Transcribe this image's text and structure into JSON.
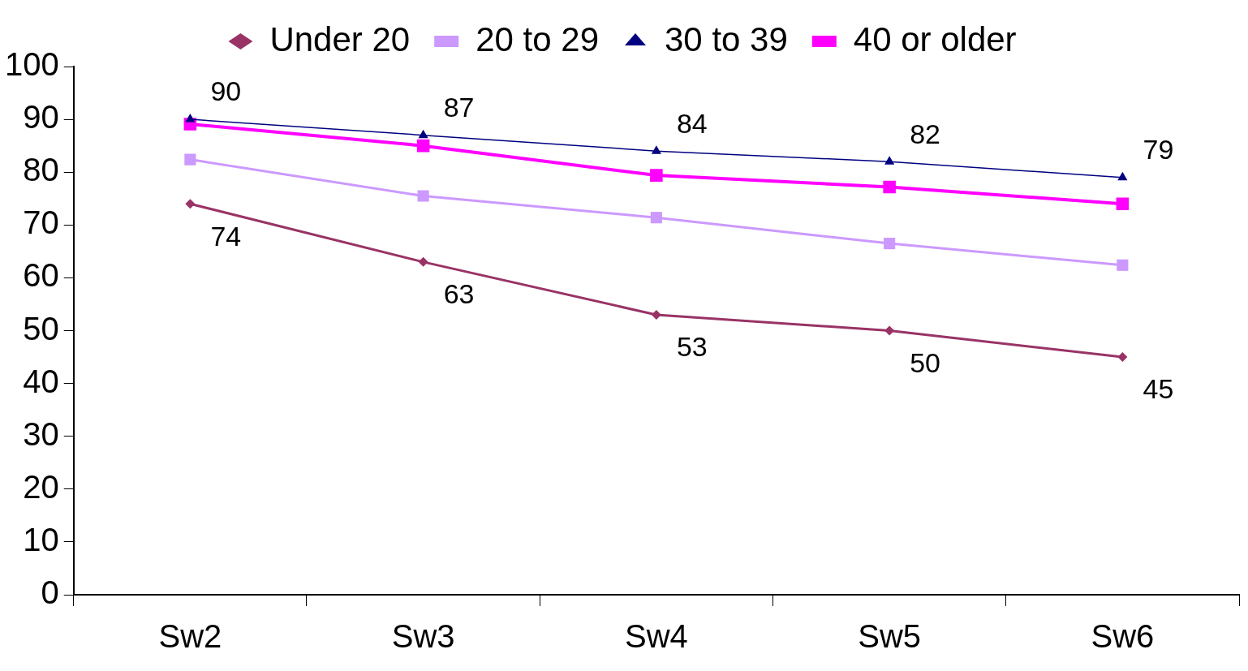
{
  "chart_data": {
    "type": "line",
    "categories": [
      "Sw2",
      "Sw3",
      "Sw4",
      "Sw5",
      "Sw6"
    ],
    "series": [
      {
        "name": "Under 20",
        "color": "#993366",
        "marker": "diamond",
        "values": [
          74,
          63,
          53,
          50,
          45
        ],
        "value_labels": [
          "74",
          "63",
          "53",
          "50",
          "45"
        ]
      },
      {
        "name": "20 to 29",
        "color": "#cc99ff",
        "marker": "square",
        "values": [
          82.4,
          75.5,
          71.4,
          66.5,
          62.4
        ]
      },
      {
        "name": "30 to 39",
        "color": "#000080",
        "marker": "triangle",
        "values": [
          90,
          87,
          84,
          82,
          79
        ],
        "value_labels": [
          "90",
          "87",
          "84",
          "82",
          "79"
        ]
      },
      {
        "name": "40 or older",
        "color": "#ff00ff",
        "marker": "square",
        "values": [
          89.1,
          85.0,
          79.4,
          77.2,
          74.0
        ]
      }
    ],
    "ylim": [
      0,
      100
    ],
    "yticks": [
      0,
      10,
      20,
      30,
      40,
      50,
      60,
      70,
      80,
      90,
      100
    ],
    "legend": "top",
    "line_style": "solid"
  }
}
